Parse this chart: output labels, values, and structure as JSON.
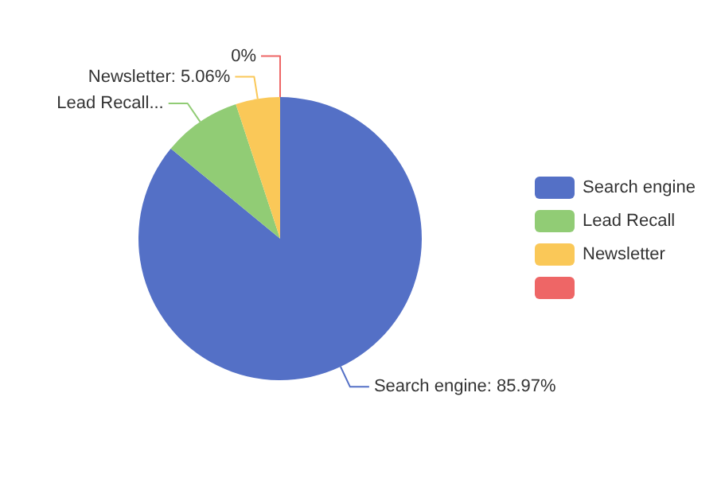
{
  "chart_data": {
    "type": "pie",
    "categories": [
      "Search engine",
      "Lead Recall",
      "Newsletter",
      null
    ],
    "values": [
      85.97,
      8.97,
      5.06,
      0
    ],
    "colors": [
      "#5470c6",
      "#91cc75",
      "#fac858",
      "#ee6666"
    ],
    "value_labels": [
      "Search engine: 85.97%",
      "Lead Recall...",
      "Newsletter: 5.06%",
      "0%"
    ],
    "legend": "right"
  }
}
